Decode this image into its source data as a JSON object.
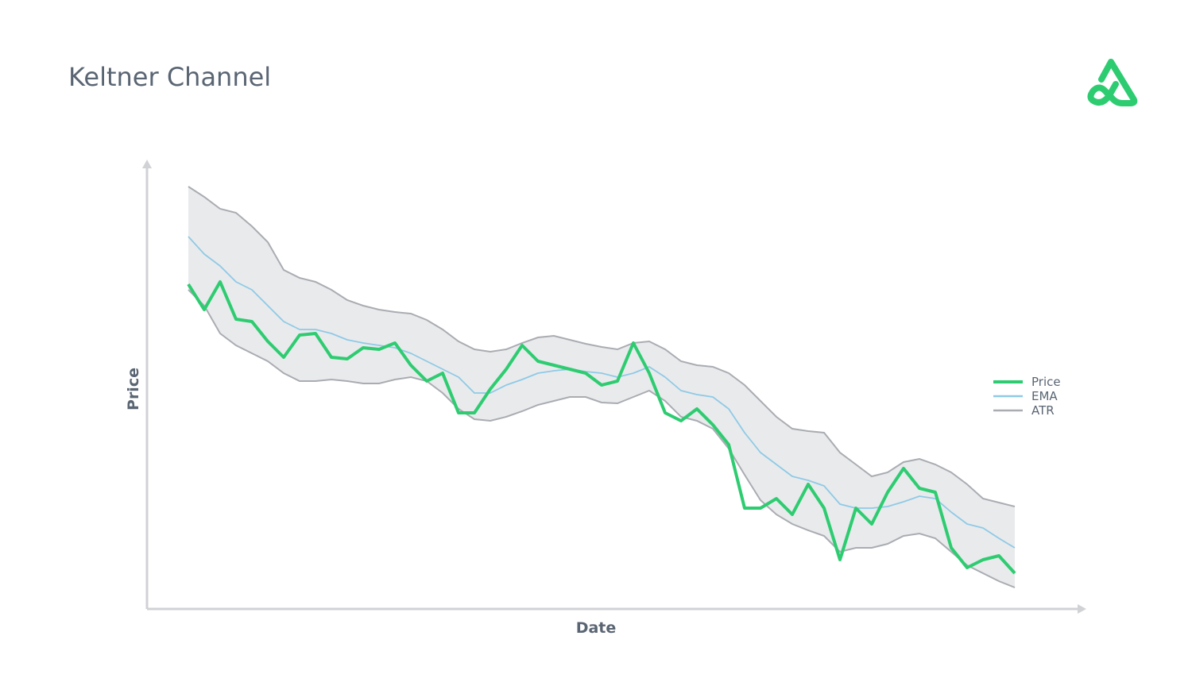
{
  "chart_data": {
    "type": "line",
    "title": "Keltner Channel",
    "x_label": "Date",
    "y_label": "Price",
    "ylim": [
      0,
      564
    ],
    "legend": "right",
    "series": [
      {
        "name": "Price",
        "color": "#2ecc71",
        "values": [
          409,
          377,
          412,
          365,
          362,
          337,
          317,
          345,
          347,
          317,
          315,
          329,
          327,
          335,
          307,
          287,
          297,
          247,
          247,
          277,
          302,
          332,
          312,
          307,
          302,
          297,
          282,
          287,
          335,
          297,
          247,
          237,
          252,
          232,
          207,
          127,
          127,
          139,
          119,
          157,
          127,
          62,
          127,
          107,
          147,
          177,
          152,
          147,
          77,
          52,
          62,
          67,
          45
        ]
      },
      {
        "name": "EMA",
        "color": "#8ecae6",
        "values": [
          469,
          447,
          432,
          412,
          402,
          382,
          362,
          352,
          352,
          347,
          339,
          335,
          332,
          329,
          322,
          312,
          302,
          292,
          272,
          272,
          282,
          289,
          297,
          300,
          302,
          299,
          297,
          292,
          297,
          305,
          292,
          275,
          270,
          267,
          252,
          222,
          197,
          182,
          167,
          162,
          155,
          132,
          127,
          127,
          129,
          135,
          142,
          139,
          122,
          107,
          102,
          89,
          77
        ]
      }
    ],
    "band": {
      "name": "ATR",
      "color": "#a9acb1",
      "fill": "#e9eaec",
      "upper": [
        532,
        519,
        504,
        499,
        482,
        462,
        427,
        417,
        412,
        402,
        389,
        382,
        377,
        374,
        372,
        364,
        352,
        337,
        327,
        324,
        327,
        335,
        342,
        344,
        339,
        334,
        330,
        327,
        335,
        337,
        327,
        312,
        307,
        305,
        297,
        282,
        262,
        242,
        227,
        224,
        222,
        197,
        182,
        167,
        172,
        185,
        189,
        182,
        172,
        157,
        139,
        134,
        129
      ],
      "lower": [
        402,
        382,
        347,
        332,
        322,
        312,
        297,
        287,
        287,
        289,
        287,
        284,
        284,
        289,
        292,
        287,
        272,
        252,
        239,
        237,
        242,
        249,
        257,
        262,
        267,
        267,
        260,
        259,
        267,
        275,
        262,
        242,
        237,
        227,
        202,
        169,
        137,
        119,
        107,
        99,
        92,
        72,
        77,
        77,
        82,
        92,
        95,
        89,
        72,
        55,
        45,
        35,
        27
      ]
    }
  }
}
